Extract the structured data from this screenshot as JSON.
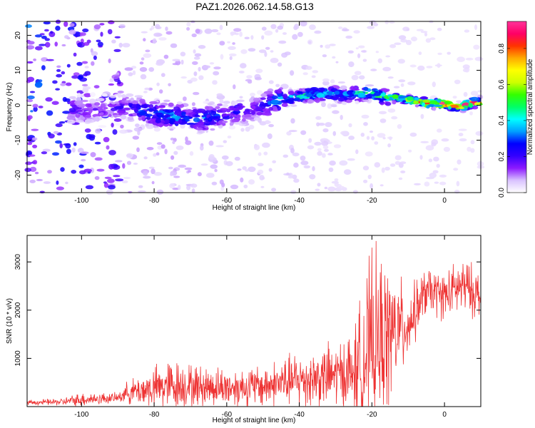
{
  "title": "PAZ1.2026.062.14.58.G13",
  "chart_data": [
    {
      "type": "heatmap",
      "name": "spectrogram",
      "xlabel": "Height of straight line (km)",
      "ylabel": "Frequency (Hz)",
      "xlim": [
        -115,
        10
      ],
      "ylim": [
        -25,
        24
      ],
      "xticks": [
        -100,
        -80,
        -60,
        -40,
        -20,
        0
      ],
      "yticks": [
        -20,
        -10,
        0,
        10,
        20
      ],
      "colorbar": {
        "label": "Normalized spectral amplitude",
        "range": [
          0,
          0.95
        ],
        "ticks": [
          "0.0",
          "0.2",
          "0.4",
          "0.6",
          "0.8"
        ],
        "colors": [
          "#ffffff",
          "#d9c2ff",
          "#8c1aff",
          "#3300ff",
          "#0000ff",
          "#00a0ff",
          "#00ffff",
          "#00ff66",
          "#33ff00",
          "#ccff00",
          "#ffff00",
          "#ffaa00",
          "#ff3300",
          "#ff0066",
          "#ff3399"
        ]
      },
      "ridge": {
        "x": [
          -102,
          -95,
          -88,
          -82,
          -76,
          -70,
          -64,
          -58,
          -52,
          -46,
          -40,
          -34,
          -28,
          -22,
          -16,
          -10,
          -4,
          0,
          4,
          8
        ],
        "y": [
          -1,
          -1.5,
          -0.5,
          -2,
          -3,
          -4,
          -3.5,
          -2,
          -1,
          1.5,
          2.5,
          3.5,
          3,
          3.5,
          2.5,
          1.5,
          0.5,
          0.5,
          -0.5,
          0.8
        ],
        "amplitude": [
          0.2,
          0.15,
          0.2,
          0.3,
          0.35,
          0.3,
          0.3,
          0.25,
          0.2,
          0.35,
          0.4,
          0.45,
          0.35,
          0.45,
          0.55,
          0.65,
          0.8,
          0.9,
          0.85,
          0.8
        ]
      },
      "noise_amplitude_by_x": {
        "x": [
          -115,
          -90,
          -87,
          -50,
          -20,
          10
        ],
        "amplitude": [
          0.18,
          0.12,
          0.05,
          0.04,
          0.03,
          0.02
        ]
      }
    },
    {
      "type": "line",
      "name": "snr",
      "xlabel": "Height of straight line (km)",
      "ylabel": "SNR (10 * v/v)",
      "xlim": [
        -115,
        10
      ],
      "ylim": [
        0,
        3550
      ],
      "xticks": [
        -100,
        -80,
        -60,
        -40,
        -20,
        0
      ],
      "yticks": [
        1000,
        2000,
        3000
      ],
      "color": "#ee3333",
      "envelope": {
        "x": [
          -115,
          -105,
          -100,
          -90,
          -88,
          -85,
          -80,
          -75,
          -70,
          -60,
          -50,
          -45,
          -40,
          -30,
          -25,
          -22,
          -20,
          -15,
          -10,
          -5,
          0,
          5,
          10
        ],
        "mean": [
          80,
          100,
          150,
          180,
          280,
          320,
          380,
          450,
          430,
          400,
          420,
          500,
          550,
          650,
          700,
          1000,
          1300,
          1500,
          1700,
          2400,
          2300,
          2500,
          2300
        ],
        "spread": [
          50,
          80,
          150,
          100,
          200,
          300,
          450,
          550,
          450,
          400,
          450,
          500,
          600,
          700,
          900,
          1700,
          1900,
          1500,
          700,
          500,
          500,
          600,
          500
        ]
      }
    }
  ]
}
